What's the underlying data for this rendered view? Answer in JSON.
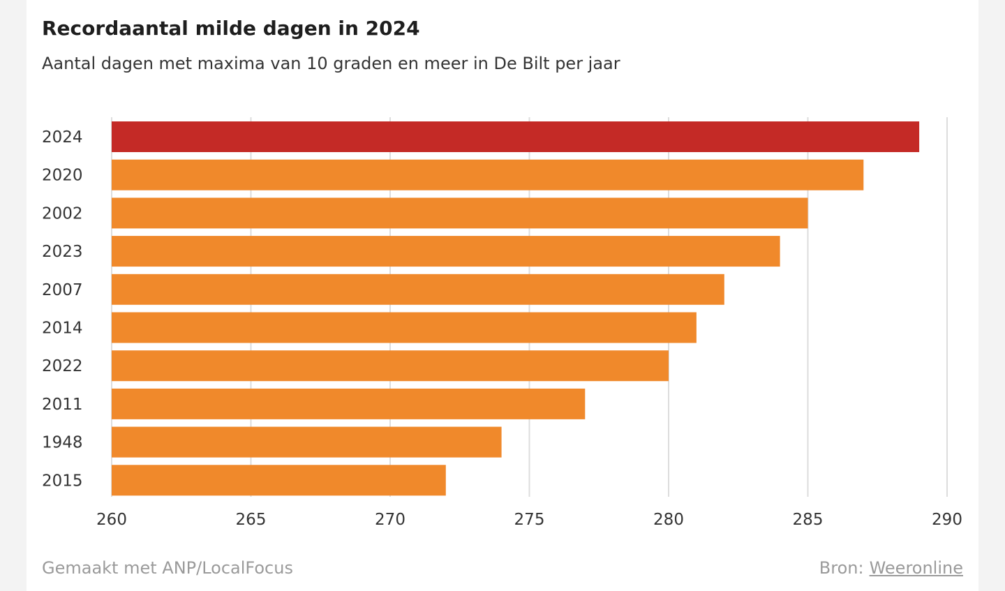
{
  "title": "Recordaantal milde dagen in 2024",
  "subtitle": "Aantal dagen met maxima van 10 graden en meer in De Bilt per jaar",
  "footer": {
    "made_with": "Gemaakt met ANP/LocalFocus",
    "source_label": "Bron:",
    "source_link": "Weeronline"
  },
  "colors": {
    "highlight": "#c42a26",
    "bar": "#f0892b",
    "grid": "#dddddd"
  },
  "chart_data": {
    "type": "bar",
    "orientation": "horizontal",
    "categories": [
      "2024",
      "2020",
      "2002",
      "2023",
      "2007",
      "2014",
      "2022",
      "2011",
      "1948",
      "2015"
    ],
    "values": [
      289,
      287,
      285,
      284,
      282,
      281,
      280,
      277,
      274,
      272
    ],
    "highlight_index": 0,
    "xlim": [
      260,
      290
    ],
    "xticks": [
      260,
      265,
      270,
      275,
      280,
      285,
      290
    ],
    "grid": "vertical"
  }
}
